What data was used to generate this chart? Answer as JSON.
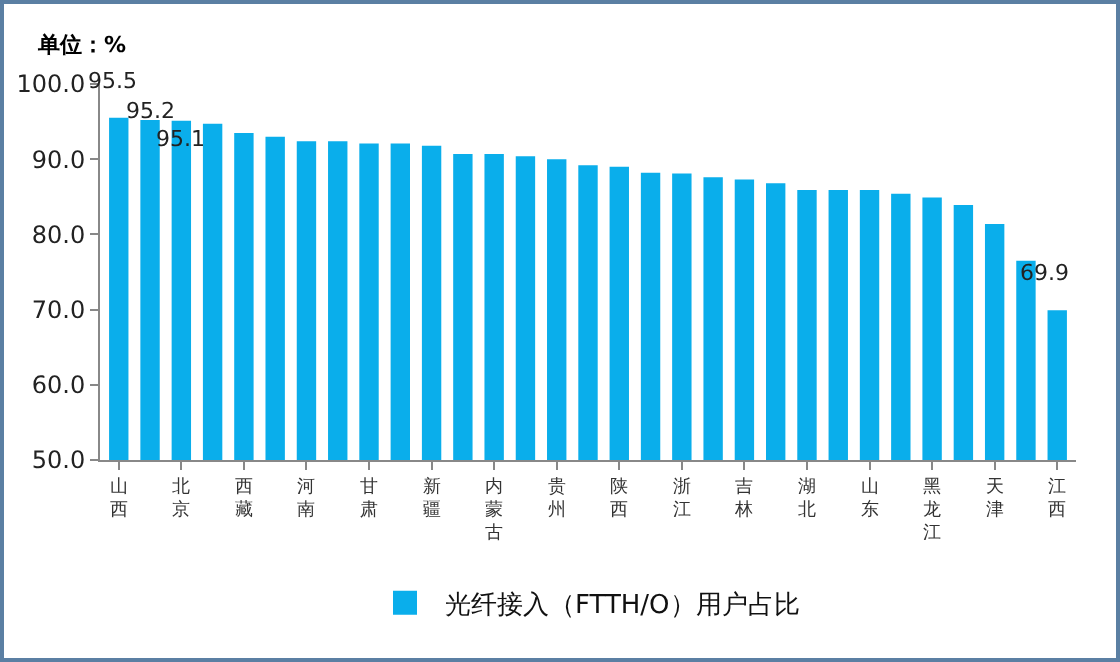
{
  "chart_data": {
    "type": "bar",
    "ylabel": "单位：%",
    "categories": [
      "山西",
      null,
      "北京",
      null,
      "西藏",
      null,
      "河南",
      null,
      "甘肃",
      null,
      "新疆",
      null,
      "内蒙古",
      null,
      "贵州",
      null,
      "陕西",
      null,
      "浙江",
      null,
      "吉林",
      null,
      "湖北",
      null,
      "山东",
      null,
      "黑龙江",
      null,
      "天津",
      null,
      "江西"
    ],
    "series": [
      {
        "name": "光纤接入（FTTH/O）用户占比",
        "color": "#0aaeeb",
        "values": [
          95.5,
          95.2,
          95.1,
          94.7,
          93.5,
          93.0,
          92.4,
          92.4,
          92.1,
          92.1,
          91.8,
          90.7,
          90.7,
          90.4,
          90.0,
          89.2,
          89.0,
          88.2,
          88.1,
          87.6,
          87.3,
          86.8,
          85.9,
          85.9,
          85.9,
          85.4,
          84.9,
          83.9,
          81.4,
          76.5,
          69.9
        ],
        "value_labels": [
          "95.5",
          "95.2",
          "95.1",
          null,
          null,
          null,
          null,
          null,
          null,
          null,
          null,
          null,
          null,
          null,
          null,
          null,
          null,
          null,
          null,
          null,
          null,
          null,
          null,
          null,
          null,
          null,
          null,
          null,
          null,
          null,
          "69.9"
        ]
      }
    ],
    "ylim": [
      50,
      100
    ],
    "yticks": [
      {
        "value": 50,
        "label": "50.0"
      },
      {
        "value": 60,
        "label": "60.0"
      },
      {
        "value": 70,
        "label": "70.0"
      },
      {
        "value": 80,
        "label": "80.0"
      },
      {
        "value": 90,
        "label": "90.0"
      },
      {
        "value": 100,
        "label": "100.0"
      }
    ],
    "grid": false,
    "legend": "bottom"
  }
}
